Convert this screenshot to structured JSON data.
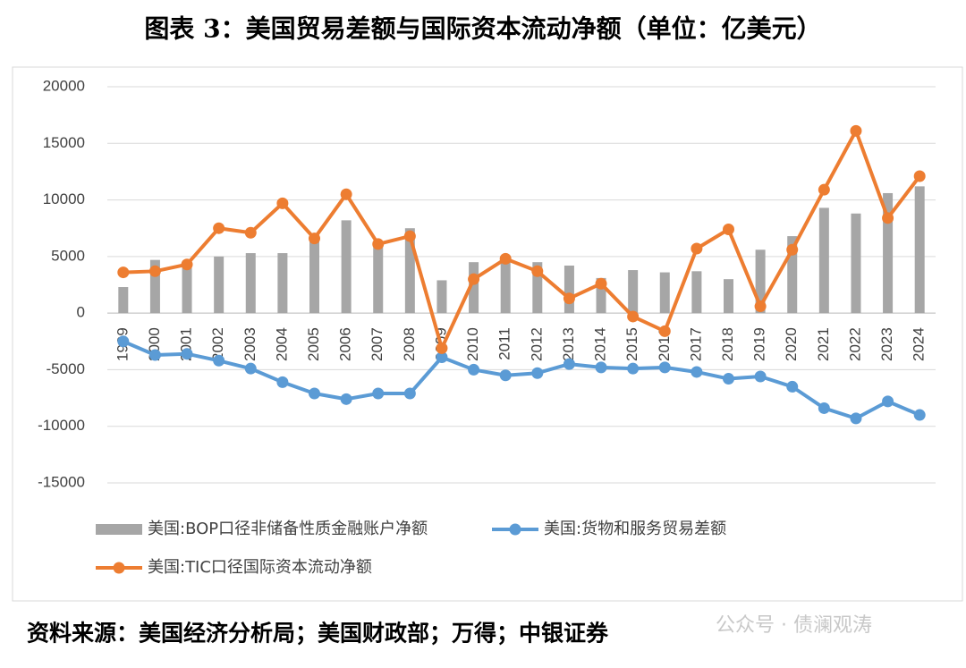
{
  "title": "图表 3：美国贸易差额与国际资本流动净额（单位：亿美元）",
  "source": "资料来源：美国经济分析局；美国财政部；万得；中银证券",
  "watermark": "公众号 · 债澜观涛",
  "chart_data": {
    "type": "combo",
    "categories": [
      "1999",
      "2000",
      "2001",
      "2002",
      "2003",
      "2004",
      "2005",
      "2006",
      "2007",
      "2008",
      "2009",
      "2010",
      "2011",
      "2012",
      "2013",
      "2014",
      "2015",
      "2016",
      "2017",
      "2018",
      "2019",
      "2020",
      "2021",
      "2022",
      "2023",
      "2024"
    ],
    "series": [
      {
        "name": "美国:BOP口径非储备性质金融账户净额",
        "type": "bar",
        "color": "#a6a6a6",
        "values": [
          2300,
          4700,
          4400,
          5000,
          5300,
          5300,
          6900,
          8200,
          6300,
          7500,
          2900,
          4500,
          4900,
          4500,
          4200,
          3100,
          3800,
          3600,
          3700,
          3000,
          5600,
          6800,
          9300,
          8800,
          10600,
          11200
        ]
      },
      {
        "name": "美国:货物和服务贸易差额",
        "type": "line",
        "color": "#5b9bd5",
        "values": [
          -2500,
          -3700,
          -3600,
          -4200,
          -4900,
          -6100,
          -7100,
          -7600,
          -7100,
          -7100,
          -3900,
          -5000,
          -5500,
          -5300,
          -4500,
          -4800,
          -4900,
          -4800,
          -5200,
          -5800,
          -5600,
          -6500,
          -8400,
          -9300,
          -7800,
          -9000
        ]
      },
      {
        "name": "美国:TIC口径国际资本流动净额",
        "type": "line",
        "color": "#ed7d31",
        "values": [
          3600,
          3700,
          4300,
          7500,
          7100,
          9700,
          6600,
          10500,
          6100,
          6800,
          -3100,
          3000,
          4800,
          3700,
          1300,
          2600,
          -300,
          -1600,
          5700,
          7400,
          600,
          5600,
          10900,
          16100,
          8400,
          12100
        ]
      }
    ],
    "ylim": [
      -15000,
      20000
    ],
    "yticks": [
      -15000,
      -10000,
      -5000,
      0,
      5000,
      10000,
      15000,
      20000
    ],
    "grid": true
  }
}
